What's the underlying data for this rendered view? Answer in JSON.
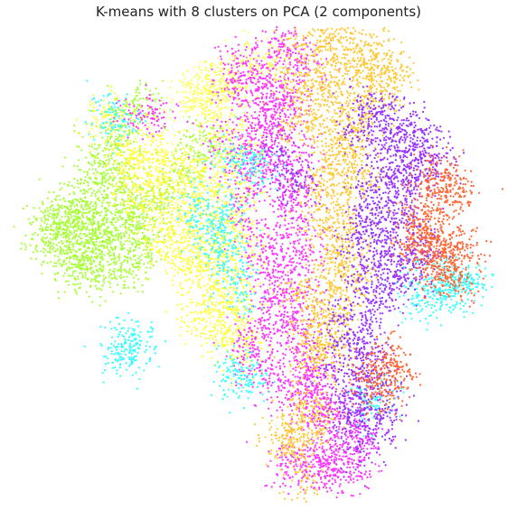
{
  "chart_data": {
    "type": "scatter",
    "title": "K-means with 8 clusters on PCA (2 components)",
    "xlabel": "",
    "ylabel": "",
    "axes_visible": false,
    "grid": false,
    "legend": "none",
    "xlim": [
      0,
      100
    ],
    "ylim": [
      0,
      100
    ],
    "clusters": [
      {
        "label": 0,
        "color": "#a6ff33",
        "points": [
          [
            4,
            55
          ],
          [
            6,
            56
          ],
          [
            8,
            57
          ],
          [
            9,
            60
          ],
          [
            11,
            62
          ],
          [
            12,
            64
          ],
          [
            14,
            59
          ],
          [
            13,
            55
          ],
          [
            16,
            53
          ],
          [
            18,
            57
          ],
          [
            17,
            61
          ],
          [
            19,
            63
          ],
          [
            21,
            66
          ],
          [
            22,
            60
          ],
          [
            24,
            58
          ],
          [
            26,
            55
          ],
          [
            23,
            52
          ],
          [
            21,
            49
          ],
          [
            18,
            48
          ],
          [
            15,
            49
          ],
          [
            12,
            50
          ],
          [
            10,
            52
          ],
          [
            8,
            51
          ],
          [
            7,
            58
          ],
          [
            11,
            58
          ],
          [
            15,
            56
          ],
          [
            19,
            54
          ],
          [
            25,
            62
          ],
          [
            20,
            69
          ],
          [
            16,
            70
          ],
          [
            14,
            74
          ],
          [
            18,
            76
          ],
          [
            20,
            80
          ],
          [
            22,
            83
          ],
          [
            24,
            85
          ],
          [
            15,
            68
          ],
          [
            9,
            64
          ],
          [
            6,
            61
          ],
          [
            27,
            64
          ],
          [
            30,
            66
          ],
          [
            33,
            70
          ],
          [
            38,
            74
          ],
          [
            40,
            76
          ],
          [
            35,
            78
          ],
          [
            13,
            47
          ]
        ]
      },
      {
        "label": 1,
        "color": "#ffff33",
        "points": [
          [
            20,
            74
          ],
          [
            23,
            72
          ],
          [
            26,
            70
          ],
          [
            28,
            67
          ],
          [
            31,
            64
          ],
          [
            33,
            60
          ],
          [
            35,
            56
          ],
          [
            37,
            52
          ],
          [
            40,
            48
          ],
          [
            42,
            45
          ],
          [
            38,
            42
          ],
          [
            36,
            38
          ],
          [
            41,
            38
          ],
          [
            44,
            42
          ],
          [
            46,
            47
          ],
          [
            44,
            52
          ],
          [
            42,
            56
          ],
          [
            40,
            60
          ],
          [
            37,
            64
          ],
          [
            35,
            68
          ],
          [
            32,
            72
          ],
          [
            29,
            75
          ],
          [
            26,
            78
          ],
          [
            24,
            74
          ],
          [
            29,
            58
          ],
          [
            32,
            52
          ],
          [
            28,
            55
          ],
          [
            34,
            48
          ],
          [
            39,
            52
          ],
          [
            43,
            60
          ],
          [
            41,
            66
          ],
          [
            44,
            70
          ],
          [
            46,
            75
          ],
          [
            43,
            79
          ],
          [
            40,
            82
          ],
          [
            38,
            71
          ],
          [
            22,
            66
          ],
          [
            25,
            64
          ],
          [
            40,
            90
          ],
          [
            44,
            91
          ],
          [
            42,
            88
          ],
          [
            18,
            84
          ],
          [
            17,
            81
          ],
          [
            47,
            56
          ],
          [
            46,
            64
          ],
          [
            45,
            38
          ],
          [
            47,
            33
          ],
          [
            45,
            30
          ],
          [
            42,
            34
          ]
        ]
      },
      {
        "label": 2,
        "color": "#ff33ff",
        "points": [
          [
            45,
            94
          ],
          [
            48,
            93
          ],
          [
            50,
            91
          ],
          [
            52,
            90
          ],
          [
            44,
            90
          ],
          [
            54,
            99
          ],
          [
            56,
            97
          ],
          [
            58,
            95
          ],
          [
            60,
            93
          ],
          [
            55,
            86
          ],
          [
            50,
            80
          ],
          [
            48,
            76
          ],
          [
            46,
            70
          ],
          [
            47,
            64
          ],
          [
            48,
            58
          ],
          [
            50,
            52
          ],
          [
            52,
            48
          ],
          [
            53,
            43
          ],
          [
            51,
            38
          ],
          [
            49,
            34
          ],
          [
            48,
            30
          ],
          [
            50,
            27
          ],
          [
            54,
            25
          ],
          [
            57,
            22
          ],
          [
            60,
            19
          ],
          [
            63,
            16
          ],
          [
            66,
            13
          ],
          [
            69,
            11
          ],
          [
            72,
            12
          ],
          [
            70,
            15
          ],
          [
            67,
            18
          ],
          [
            64,
            21
          ],
          [
            61,
            26
          ],
          [
            58,
            31
          ],
          [
            56,
            37
          ],
          [
            55,
            44
          ],
          [
            56,
            50
          ],
          [
            55,
            56
          ],
          [
            57,
            62
          ],
          [
            55,
            67
          ],
          [
            53,
            72
          ],
          [
            51,
            76
          ],
          [
            56,
            78
          ],
          [
            58,
            73
          ],
          [
            58,
            66
          ],
          [
            59,
            58
          ],
          [
            60,
            52
          ],
          [
            59,
            44
          ],
          [
            58,
            38
          ],
          [
            60,
            32
          ],
          [
            62,
            27
          ],
          [
            61,
            22
          ],
          [
            57,
            85
          ],
          [
            53,
            81
          ],
          [
            24,
            83
          ],
          [
            27,
            82
          ],
          [
            60,
            5
          ],
          [
            64,
            4
          ],
          [
            68,
            5
          ],
          [
            71,
            6
          ],
          [
            62,
            8
          ],
          [
            66,
            7
          ],
          [
            56,
            6
          ],
          [
            58,
            9
          ],
          [
            47,
            86
          ],
          [
            52,
            84
          ],
          [
            42,
            77
          ],
          [
            50,
            72
          ]
        ]
      },
      {
        "label": 3,
        "color": "#33ffff",
        "points": [
          [
            19,
            83
          ],
          [
            18,
            81
          ],
          [
            48,
            73
          ],
          [
            49,
            71
          ],
          [
            44,
            73
          ],
          [
            40,
            58
          ],
          [
            41,
            55
          ],
          [
            42,
            53
          ],
          [
            44,
            49
          ],
          [
            21,
            33
          ],
          [
            22,
            31
          ],
          [
            20,
            30
          ],
          [
            23,
            35
          ],
          [
            45,
            27
          ],
          [
            46,
            26
          ],
          [
            47,
            24
          ],
          [
            88,
            44
          ],
          [
            90,
            43
          ],
          [
            92,
            45
          ],
          [
            94,
            47
          ],
          [
            46,
            44
          ],
          [
            36,
            64
          ],
          [
            84,
            46
          ],
          [
            86,
            42
          ],
          [
            73,
            19
          ],
          [
            75,
            21
          ],
          [
            43,
            62
          ],
          [
            39,
            60
          ],
          [
            91,
            46
          ],
          [
            95,
            46
          ]
        ]
      },
      {
        "label": 4,
        "color": "#ffc833",
        "points": [
          [
            59,
            98
          ],
          [
            63,
            100
          ],
          [
            67,
            99
          ],
          [
            71,
            98
          ],
          [
            75,
            96
          ],
          [
            78,
            94
          ],
          [
            74,
            92
          ],
          [
            70,
            91
          ],
          [
            66,
            90
          ],
          [
            62,
            92
          ],
          [
            60,
            88
          ],
          [
            64,
            86
          ],
          [
            68,
            84
          ],
          [
            72,
            86
          ],
          [
            76,
            88
          ],
          [
            79,
            91
          ],
          [
            64,
            79
          ],
          [
            67,
            76
          ],
          [
            70,
            74
          ],
          [
            65,
            72
          ],
          [
            63,
            68
          ],
          [
            62,
            63
          ],
          [
            64,
            58
          ],
          [
            66,
            54
          ],
          [
            67,
            50
          ],
          [
            65,
            46
          ],
          [
            63,
            42
          ],
          [
            61,
            38
          ],
          [
            62,
            33
          ],
          [
            64,
            30
          ],
          [
            66,
            32
          ],
          [
            67,
            38
          ],
          [
            69,
            43
          ],
          [
            70,
            48
          ],
          [
            69,
            53
          ],
          [
            70,
            58
          ],
          [
            68,
            63
          ],
          [
            69,
            68
          ],
          [
            72,
            70
          ],
          [
            70,
            79
          ],
          [
            60,
            80
          ],
          [
            57,
            82
          ],
          [
            63,
            18
          ],
          [
            61,
            16
          ],
          [
            56,
            14
          ],
          [
            58,
            12
          ],
          [
            55,
            10
          ],
          [
            59,
            3
          ],
          [
            66,
            96
          ],
          [
            73,
            94
          ],
          [
            74,
            83
          ],
          [
            56,
            92
          ],
          [
            58,
            44
          ],
          [
            59,
            20
          ],
          [
            61,
            29
          ],
          [
            63,
            37
          ],
          [
            68,
            73
          ],
          [
            57,
            14
          ]
        ]
      },
      {
        "label": 5,
        "color": "#9933ff",
        "points": [
          [
            72,
            84
          ],
          [
            75,
            83
          ],
          [
            78,
            82
          ],
          [
            80,
            80
          ],
          [
            83,
            79
          ],
          [
            86,
            77
          ],
          [
            84,
            73
          ],
          [
            81,
            71
          ],
          [
            78,
            69
          ],
          [
            75,
            66
          ],
          [
            72,
            62
          ],
          [
            71,
            56
          ],
          [
            72,
            50
          ],
          [
            73,
            45
          ],
          [
            75,
            42
          ],
          [
            78,
            44
          ],
          [
            80,
            47
          ],
          [
            83,
            50
          ],
          [
            85,
            53
          ],
          [
            83,
            57
          ],
          [
            81,
            61
          ],
          [
            79,
            65
          ],
          [
            82,
            68
          ],
          [
            86,
            70
          ],
          [
            88,
            74
          ],
          [
            80,
            75
          ],
          [
            76,
            73
          ],
          [
            74,
            57
          ],
          [
            77,
            55
          ],
          [
            80,
            52
          ],
          [
            77,
            60
          ],
          [
            68,
            20
          ],
          [
            70,
            24
          ],
          [
            72,
            28
          ],
          [
            71,
            33
          ],
          [
            69,
            35
          ],
          [
            74,
            31
          ],
          [
            73,
            22
          ],
          [
            76,
            26
          ],
          [
            75,
            15
          ],
          [
            72,
            16
          ],
          [
            69,
            17
          ],
          [
            71,
            10
          ],
          [
            57,
            69
          ],
          [
            59,
            67
          ],
          [
            55,
            74
          ],
          [
            76,
            50
          ],
          [
            71,
            78
          ],
          [
            67,
            39
          ],
          [
            73,
            38
          ],
          [
            77,
            80
          ],
          [
            66,
            28
          ],
          [
            77,
            18
          ]
        ]
      },
      {
        "label": 6,
        "color": "#ff6633",
        "points": [
          [
            88,
            62
          ],
          [
            90,
            66
          ],
          [
            91,
            69
          ],
          [
            89,
            70
          ],
          [
            92,
            64
          ],
          [
            86,
            53
          ],
          [
            88,
            55
          ],
          [
            90,
            52
          ],
          [
            92,
            54
          ],
          [
            94,
            52
          ],
          [
            93,
            47
          ],
          [
            91,
            48
          ],
          [
            89,
            49
          ],
          [
            87,
            50
          ],
          [
            85,
            58
          ],
          [
            83,
            55
          ],
          [
            86,
            57
          ],
          [
            76,
            22
          ],
          [
            78,
            25
          ],
          [
            75,
            27
          ],
          [
            77,
            30
          ],
          [
            79,
            27
          ],
          [
            73,
            25
          ],
          [
            86,
            67
          ],
          [
            84,
            60
          ]
        ]
      },
      {
        "label": 7,
        "color": "#ffff66",
        "points": [
          [
            36,
            88
          ],
          [
            38,
            89
          ],
          [
            40,
            87
          ],
          [
            35,
            86
          ],
          [
            48,
            95
          ],
          [
            52,
            94
          ]
        ]
      }
    ]
  }
}
